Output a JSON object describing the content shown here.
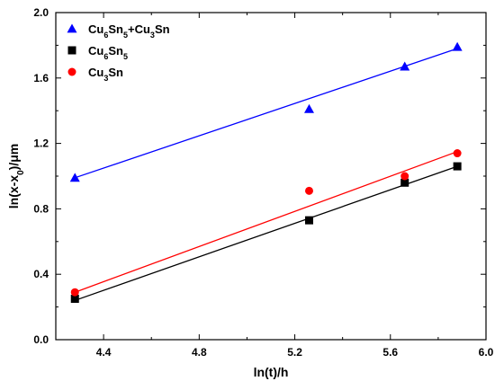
{
  "chart_data": {
    "type": "scatter",
    "xlabel": "ln(t)/h",
    "ylabel": "ln(x-x0)/μm",
    "xlim": [
      4.2,
      6.0
    ],
    "ylim": [
      0.0,
      2.0
    ],
    "xticks": [
      4.4,
      4.8,
      5.2,
      5.6,
      6.0
    ],
    "yticks": [
      0.0,
      0.4,
      0.8,
      1.2,
      1.6,
      2.0
    ],
    "xtick_labels": [
      "4.4",
      "4.8",
      "5.2",
      "5.6",
      "6.0"
    ],
    "ytick_labels": [
      "0.0",
      "0.4",
      "0.8",
      "1.2",
      "1.6",
      "2.0"
    ],
    "legend_position": "top-left",
    "series": [
      {
        "name": "Cu6Sn5+Cu3Sn",
        "legend_parts": [
          [
            "Cu",
            ""
          ],
          [
            "6",
            "sub"
          ],
          [
            "Sn",
            ""
          ],
          [
            "5",
            "sub"
          ],
          [
            "+Cu",
            ""
          ],
          [
            "3",
            "sub"
          ],
          [
            "Sn",
            ""
          ]
        ],
        "marker": "triangle",
        "color": "#0000ff",
        "x": [
          4.28,
          5.26,
          5.66,
          5.88
        ],
        "y": [
          0.99,
          1.41,
          1.67,
          1.79
        ],
        "fit": [
          [
            4.28,
            0.99
          ],
          [
            5.88,
            1.78
          ]
        ]
      },
      {
        "name": "Cu6Sn5",
        "legend_parts": [
          [
            "Cu",
            ""
          ],
          [
            "6",
            "sub"
          ],
          [
            "Sn",
            ""
          ],
          [
            "5",
            "sub"
          ]
        ],
        "marker": "square",
        "color": "#000000",
        "x": [
          4.28,
          5.26,
          5.66,
          5.88
        ],
        "y": [
          0.25,
          0.73,
          0.96,
          1.06
        ],
        "fit": [
          [
            4.28,
            0.24
          ],
          [
            5.88,
            1.06
          ]
        ]
      },
      {
        "name": "Cu3Sn",
        "legend_parts": [
          [
            "Cu",
            ""
          ],
          [
            "3",
            "sub"
          ],
          [
            "Sn",
            ""
          ]
        ],
        "marker": "circle",
        "color": "#ff0000",
        "x": [
          4.28,
          5.26,
          5.66,
          5.88
        ],
        "y": [
          0.29,
          0.91,
          1.0,
          1.14
        ],
        "fit": [
          [
            4.28,
            0.29
          ],
          [
            5.88,
            1.15
          ]
        ]
      }
    ]
  }
}
